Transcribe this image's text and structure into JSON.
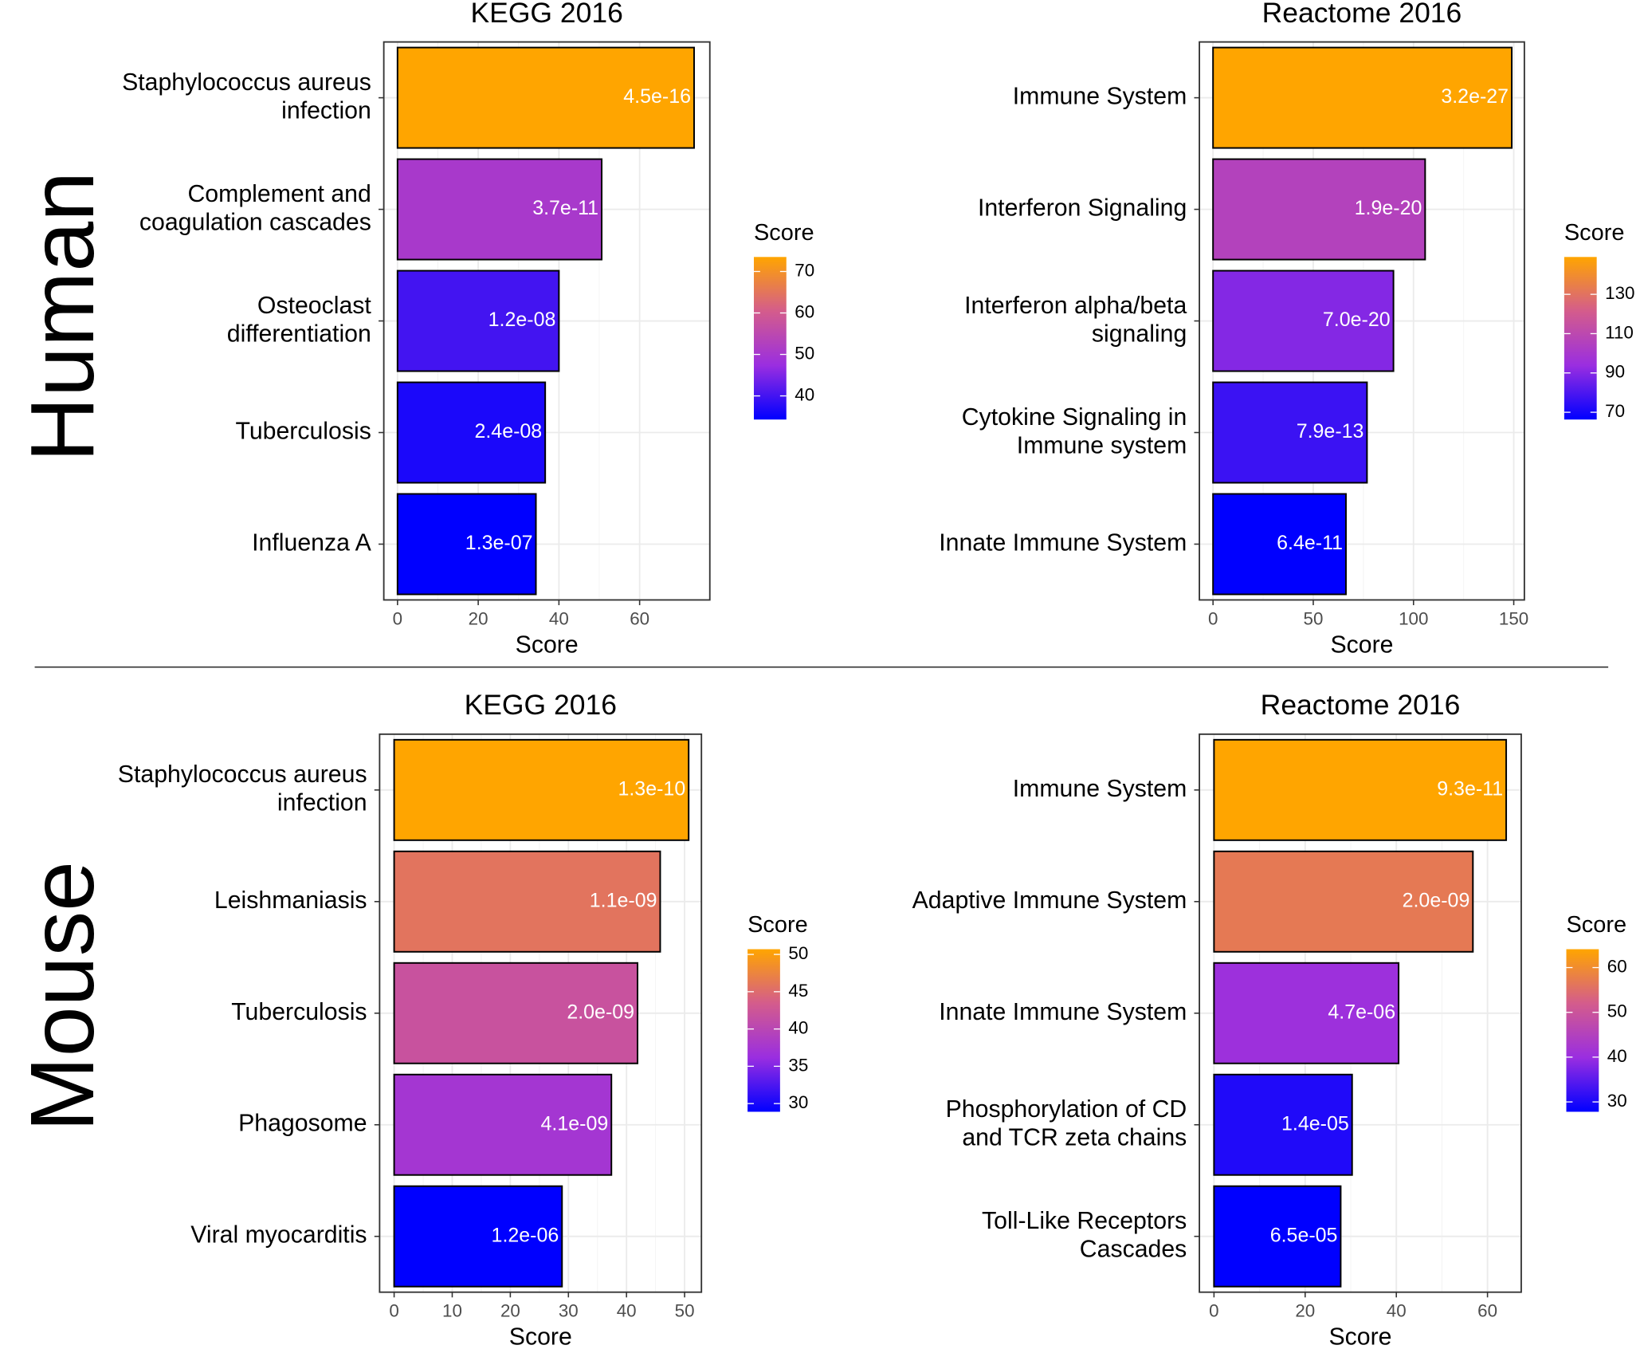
{
  "row_labels": [
    "Human",
    "Mouse"
  ],
  "chart_data": [
    {
      "type": "hbar",
      "title": "KEGG 2016",
      "xlabel": "Score",
      "categories": [
        "Staphylococcus aureus\ninfection",
        "Complement and\ncoagulation cascades",
        "Osteoclast\ndifferentiation",
        "Tuberculosis",
        "Influenza A"
      ],
      "values": [
        73.5,
        50.6,
        40,
        36.6,
        34.3
      ],
      "value_labels": [
        "4.5e-16",
        "3.7e-11",
        "1.2e-08",
        "2.4e-08",
        "1.3e-07"
      ],
      "xlim": [
        -3.4,
        77.4
      ],
      "xticks": [
        0,
        20,
        40,
        60
      ],
      "grid": true,
      "legend_title": "Score",
      "legend_ticks": [
        40,
        50,
        60,
        70
      ],
      "colors": [
        "#0000ff",
        "#9a2ee0",
        "#d45c8c",
        "#ffa500"
      ]
    },
    {
      "type": "hbar",
      "title": "Reactome 2016",
      "xlabel": "Score",
      "categories": [
        "Immune System",
        "Interferon Signaling",
        "Interferon alpha/beta\nsignaling",
        "Cytokine Signaling in\nImmune system",
        "Innate Immune System"
      ],
      "values": [
        149,
        105.8,
        90,
        76.8,
        66.3
      ],
      "value_labels": [
        "3.2e-27",
        "1.9e-20",
        "7.0e-20",
        "7.9e-13",
        "6.4e-11"
      ],
      "xlim": [
        -6.8,
        155.3
      ],
      "xticks": [
        0,
        50,
        100,
        150
      ],
      "grid": true,
      "legend_title": "Score",
      "legend_ticks": [
        70,
        90,
        110,
        130
      ],
      "colors": [
        "#0000ff",
        "#9a2ee0",
        "#d45c8c",
        "#ffa500"
      ]
    },
    {
      "type": "hbar",
      "title": "KEGG 2016",
      "xlabel": "Score",
      "categories": [
        "Staphylococcus aureus\ninfection",
        "Leishmaniasis",
        "Tuberculosis",
        "Phagosome",
        "Viral myocarditis"
      ],
      "values": [
        50.7,
        45.8,
        41.9,
        37.4,
        28.9
      ],
      "value_labels": [
        "1.3e-10",
        "1.1e-09",
        "2.0e-09",
        "4.1e-09",
        "1.2e-06"
      ],
      "xlim": [
        -2.5,
        52.9
      ],
      "xticks": [
        0,
        10,
        20,
        30,
        40,
        50
      ],
      "grid": true,
      "legend_title": "Score",
      "legend_ticks": [
        30,
        35,
        40,
        45,
        50
      ],
      "colors": [
        "#0000ff",
        "#9a2ee0",
        "#d45c8c",
        "#ffa500"
      ]
    },
    {
      "type": "hbar",
      "title": "Reactome 2016",
      "xlabel": "Score",
      "categories": [
        "Immune System",
        "Adaptive Immune System",
        "Innate Immune System",
        "Phosphorylation of CD\nand TCR zeta chains",
        "Toll-Like Receptors\nCascades"
      ],
      "values": [
        64.1,
        56.8,
        40.5,
        30.3,
        27.8
      ],
      "value_labels": [
        "9.3e-11",
        "2.0e-09",
        "4.7e-06",
        "1.4e-05",
        "6.5e-05"
      ],
      "xlim": [
        -3.2,
        67.4
      ],
      "xticks": [
        0,
        20,
        40,
        60
      ],
      "grid": true,
      "legend_title": "Score",
      "legend_ticks": [
        30,
        40,
        50,
        60
      ],
      "colors": [
        "#0000ff",
        "#9a2ee0",
        "#d45c8c",
        "#ffa500"
      ]
    }
  ]
}
